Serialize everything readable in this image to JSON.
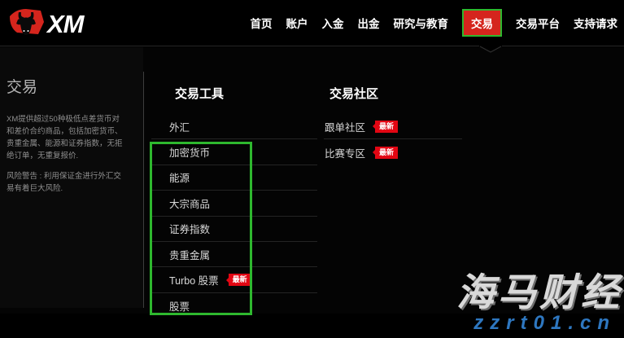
{
  "brand": {
    "name": "XM"
  },
  "nav": {
    "items": [
      {
        "label": "首页",
        "active": false
      },
      {
        "label": "账户",
        "active": false
      },
      {
        "label": "入金",
        "active": false
      },
      {
        "label": "出金",
        "active": false
      },
      {
        "label": "研究与教育",
        "active": false
      },
      {
        "label": "交易",
        "active": true
      },
      {
        "label": "交易平台",
        "active": false
      },
      {
        "label": "支持请求",
        "active": false
      }
    ]
  },
  "mega_menu": {
    "sidebar": {
      "title": "交易",
      "description": "XM提供超过50种极低点差货币对和差价合约商品，包括加密货币、贵重金属、能源和证券指数，无拒绝订单，无重复报价.",
      "risk_warning": "风险警告 : 利用保证金进行外汇交易有着巨大风险."
    },
    "columns": [
      {
        "header": "交易工具",
        "items": [
          {
            "label": "外汇"
          },
          {
            "label": "加密货币"
          },
          {
            "label": "能源"
          },
          {
            "label": "大宗商品"
          },
          {
            "label": "证券指数"
          },
          {
            "label": "贵重金属"
          },
          {
            "label": "Turbo 股票",
            "badge": "最新"
          },
          {
            "label": "股票"
          }
        ]
      },
      {
        "header": "交易社区",
        "items": [
          {
            "label": "跟单社区",
            "badge": "最新"
          },
          {
            "label": "比赛专区",
            "badge": "最新"
          }
        ]
      }
    ]
  },
  "watermark": {
    "line1": "海马财经",
    "line2": "zzrt01.cn"
  },
  "colors": {
    "accent_red": "#d5251d",
    "badge_red": "#e20613",
    "annotation_green": "#2eb82e",
    "link_blue": "#2e77c0"
  }
}
